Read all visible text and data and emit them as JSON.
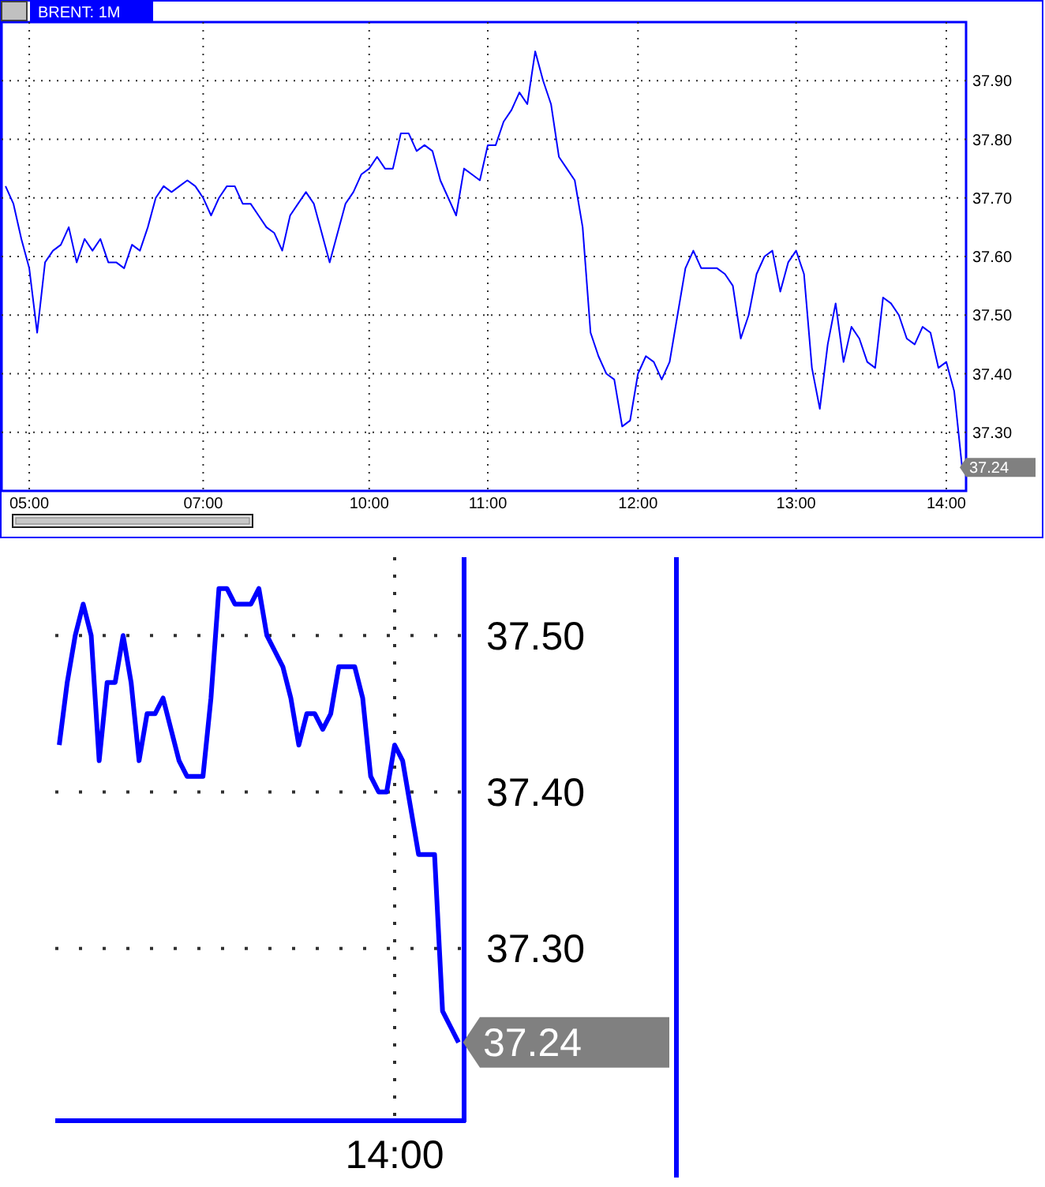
{
  "chart_data": [
    {
      "type": "line",
      "title": "BRENT: 1M",
      "color": "#0000ff",
      "grid": true,
      "ylim": [
        37.2,
        38.0
      ],
      "yticks": [
        {
          "value": 37.3,
          "label": "37.30"
        },
        {
          "value": 37.4,
          "label": "37.40"
        },
        {
          "value": 37.5,
          "label": "37.50"
        },
        {
          "value": 37.6,
          "label": "37.60"
        },
        {
          "value": 37.7,
          "label": "37.70"
        },
        {
          "value": 37.8,
          "label": "37.80"
        },
        {
          "value": 37.9,
          "label": "37.90"
        }
      ],
      "categories": [
        null,
        null,
        null,
        "05:00",
        null,
        null,
        null,
        null,
        null,
        null,
        null,
        null,
        null,
        null,
        null,
        null,
        null,
        null,
        null,
        null,
        null,
        null,
        null,
        null,
        null,
        "07:00",
        null,
        null,
        null,
        null,
        null,
        null,
        null,
        null,
        null,
        null,
        null,
        null,
        null,
        null,
        null,
        null,
        null,
        null,
        null,
        null,
        "10:00",
        null,
        null,
        null,
        null,
        null,
        null,
        null,
        null,
        null,
        null,
        null,
        null,
        null,
        null,
        "11:00",
        null,
        null,
        null,
        null,
        null,
        null,
        null,
        null,
        null,
        null,
        null,
        null,
        null,
        null,
        null,
        null,
        null,
        null,
        "12:00",
        null,
        null,
        null,
        null,
        null,
        null,
        null,
        null,
        null,
        null,
        null,
        null,
        null,
        null,
        null,
        null,
        null,
        null,
        null,
        "13:00",
        null,
        null,
        null,
        null,
        null,
        null,
        null,
        null,
        null,
        null,
        null,
        null,
        null,
        null,
        null,
        null,
        null,
        null,
        "14:00",
        null,
        null
      ],
      "values": [
        37.72,
        37.69,
        37.63,
        37.58,
        37.47,
        37.59,
        37.61,
        37.62,
        37.65,
        37.59,
        37.63,
        37.61,
        37.63,
        37.59,
        37.59,
        37.58,
        37.62,
        37.61,
        37.65,
        37.7,
        37.72,
        37.71,
        37.72,
        37.73,
        37.72,
        37.7,
        37.67,
        37.7,
        37.72,
        37.72,
        37.69,
        37.69,
        37.67,
        37.65,
        37.64,
        37.61,
        37.67,
        37.69,
        37.71,
        37.69,
        37.64,
        37.59,
        37.64,
        37.69,
        37.71,
        37.74,
        37.75,
        37.77,
        37.75,
        37.75,
        37.81,
        37.81,
        37.78,
        37.79,
        37.78,
        37.73,
        37.7,
        37.67,
        37.75,
        37.74,
        37.73,
        37.79,
        37.79,
        37.83,
        37.85,
        37.88,
        37.86,
        37.95,
        37.9,
        37.86,
        37.77,
        37.75,
        37.73,
        37.65,
        37.47,
        37.43,
        37.4,
        37.39,
        37.31,
        37.32,
        37.4,
        37.43,
        37.42,
        37.39,
        37.42,
        37.5,
        37.58,
        37.61,
        37.58,
        37.58,
        37.58,
        37.57,
        37.55,
        37.46,
        37.5,
        37.57,
        37.6,
        37.61,
        37.54,
        37.59,
        37.61,
        37.57,
        37.41,
        37.34,
        37.45,
        37.52,
        37.42,
        37.48,
        37.46,
        37.42,
        37.41,
        37.53,
        37.52,
        37.5,
        37.46,
        37.45,
        37.48,
        37.47,
        37.41,
        37.42,
        37.37,
        37.24
      ],
      "annotations": [
        "37.24"
      ]
    },
    {
      "type": "line",
      "color": "#0000ff",
      "grid": true,
      "ylim": [
        37.19,
        37.55
      ],
      "yticks": [
        {
          "value": 37.3,
          "label": "37.30"
        },
        {
          "value": 37.4,
          "label": "37.40"
        },
        {
          "value": 37.5,
          "label": "37.50"
        }
      ],
      "categories": [
        null,
        null,
        null,
        null,
        null,
        null,
        null,
        null,
        null,
        null,
        null,
        null,
        null,
        null,
        null,
        null,
        null,
        null,
        null,
        null,
        null,
        null,
        null,
        null,
        null,
        null,
        null,
        null,
        null,
        null,
        null,
        null,
        null,
        null,
        null,
        null,
        null,
        null,
        null,
        null,
        null,
        null,
        "14:00",
        null,
        null,
        null,
        null,
        null,
        null,
        null,
        null
      ],
      "values": [
        37.43,
        37.47,
        37.5,
        37.52,
        37.5,
        37.42,
        37.47,
        37.47,
        37.5,
        37.47,
        37.42,
        37.45,
        37.45,
        37.46,
        37.44,
        37.42,
        37.41,
        37.41,
        37.41,
        37.46,
        37.53,
        37.53,
        37.52,
        37.52,
        37.52,
        37.53,
        37.5,
        37.49,
        37.48,
        37.46,
        37.43,
        37.45,
        37.45,
        37.44,
        37.45,
        37.48,
        37.48,
        37.48,
        37.46,
        37.41,
        37.4,
        37.4,
        37.43,
        37.42,
        37.39,
        37.36,
        37.36,
        37.36,
        37.26,
        37.25,
        37.24
      ],
      "annotations": [
        "37.24"
      ]
    }
  ]
}
